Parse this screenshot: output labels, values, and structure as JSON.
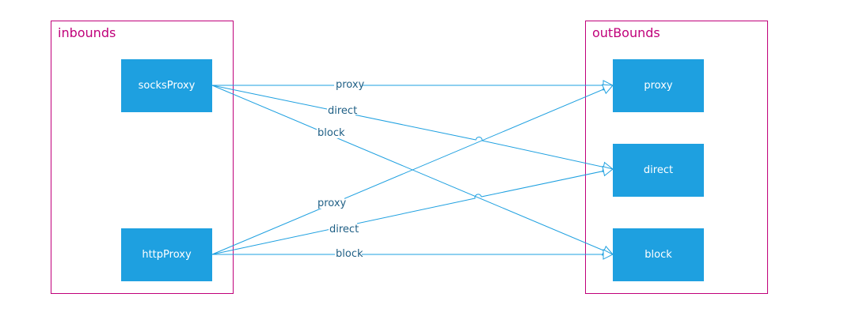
{
  "colors": {
    "group_border": "#c0007a",
    "node_fill": "#1ea0e0",
    "edge": "#1ea0e0",
    "label": "#1f5f85"
  },
  "inbounds": {
    "title": "inbounds",
    "nodes": [
      {
        "label": "socksProxy"
      },
      {
        "label": "httpProxy"
      }
    ]
  },
  "outbounds": {
    "title": "outBounds",
    "nodes": [
      {
        "label": "proxy"
      },
      {
        "label": "direct"
      },
      {
        "label": "block"
      }
    ]
  },
  "edges": [
    {
      "from": "socksProxy",
      "to": "proxy",
      "label": "proxy"
    },
    {
      "from": "socksProxy",
      "to": "direct",
      "label": "direct"
    },
    {
      "from": "socksProxy",
      "to": "block",
      "label": "block"
    },
    {
      "from": "httpProxy",
      "to": "proxy",
      "label": "proxy"
    },
    {
      "from": "httpProxy",
      "to": "direct",
      "label": "direct"
    },
    {
      "from": "httpProxy",
      "to": "block",
      "label": "block"
    }
  ]
}
